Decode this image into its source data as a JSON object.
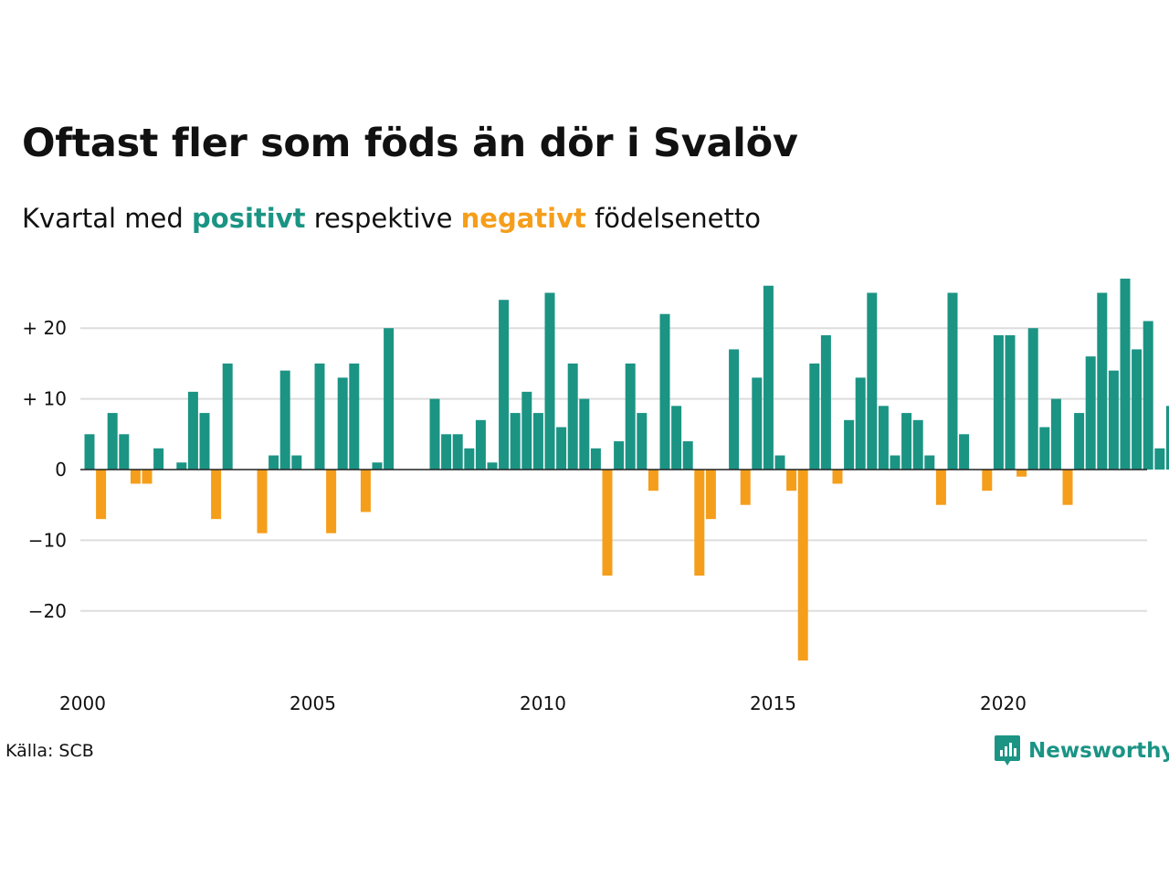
{
  "header": {
    "title": "Oftast fler som föds än dör i Svalöv",
    "subtitle_before": "Kvartal med",
    "subtitle_pos": "positivt",
    "subtitle_mid": "respektive",
    "subtitle_neg": "negativt",
    "subtitle_after": "födelsenetto"
  },
  "footer": {
    "source": "Källa: SCB",
    "brand": "Newsworthy",
    "brand_icon": "bar-chart-speech-bubble-icon"
  },
  "colors": {
    "positive": "#1b9484",
    "negative": "#f59e1b",
    "grid": "#dddddd",
    "zero_line": "#222222"
  },
  "chart_data": {
    "type": "bar",
    "x_start_year": 2000,
    "quarters_per_year": 4,
    "x_ticks": [
      "2000",
      "2005",
      "2010",
      "2015",
      "2020"
    ],
    "y_ticks": [
      {
        "value": 20,
        "label": "+ 20"
      },
      {
        "value": 10,
        "label": "+ 10"
      },
      {
        "value": 0,
        "label": "0"
      },
      {
        "value": -10,
        "label": "−10"
      },
      {
        "value": -20,
        "label": "−20"
      }
    ],
    "ylim": [
      -28,
      28
    ],
    "grid": true,
    "values": [
      5,
      -7,
      8,
      5,
      -2,
      -2,
      3,
      0,
      1,
      11,
      8,
      -7,
      15,
      0,
      0,
      -9,
      2,
      14,
      2,
      0,
      15,
      -9,
      13,
      15,
      -6,
      1,
      20,
      0,
      0,
      0,
      10,
      5,
      5,
      3,
      7,
      1,
      24,
      8,
      11,
      8,
      25,
      6,
      15,
      10,
      3,
      -15,
      4,
      15,
      8,
      -3,
      22,
      9,
      4,
      -15,
      -7,
      0,
      17,
      -5,
      13,
      26,
      2,
      -3,
      -27,
      15,
      19,
      -2,
      7,
      13,
      25,
      9,
      2,
      8,
      7,
      2,
      -5,
      25,
      5,
      0,
      -3,
      19,
      19,
      -1,
      20,
      6,
      10,
      -5,
      8,
      16,
      25,
      14,
      27,
      17,
      21,
      3,
      9
    ]
  }
}
